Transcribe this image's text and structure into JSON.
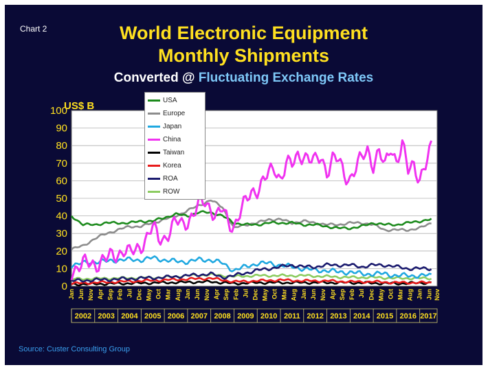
{
  "chart_label": "Chart 2",
  "title_line1": "World Electronic Equipment",
  "title_line2": "Monthly Shipments",
  "subtitle_part1": "Converted @ ",
  "subtitle_part2": "Fluctuating Exchange Rates",
  "source": "Source: Custer Consulting Group",
  "colors": {
    "background": "#0a0a36",
    "title": "#ffe020",
    "subtitle_accent": "#7ec8f8",
    "source": "#3aa0f0"
  },
  "chart_data": {
    "type": "line",
    "ylabel": "US$ B",
    "ylim": [
      0,
      100
    ],
    "yticks": [
      0,
      10,
      20,
      30,
      40,
      50,
      60,
      70,
      80,
      90,
      100
    ],
    "month_ticks": [
      "Jan",
      "Jun",
      "Nov",
      "Apr",
      "Sep",
      "Feb",
      "Jul",
      "Dec",
      "May",
      "Oct",
      "Mar",
      "Aug",
      "Jan",
      "Jun",
      "Nov",
      "Apr",
      "Sep",
      "Feb",
      "Jul",
      "Dec",
      "May",
      "Oct",
      "Mar",
      "Aug",
      "Jan",
      "Jun",
      "Nov",
      "Apr",
      "Sep",
      "Feb",
      "Jul",
      "Dec",
      "May",
      "Oct",
      "Mar",
      "Aug",
      "Jan",
      "Jun",
      "Nov"
    ],
    "years": [
      "2002",
      "2003",
      "2004",
      "2005",
      "2006",
      "2007",
      "2008",
      "2009",
      "2010",
      "2011",
      "2012",
      "2013",
      "2014",
      "2015",
      "2016",
      "2017"
    ],
    "x_start": "2002-01",
    "x_end": "2017-11",
    "grid": true,
    "legend_position": "top-left",
    "series": [
      {
        "name": "USA",
        "color": "#1c8a1c",
        "anchors": [
          [
            0,
            40
          ],
          [
            6,
            35
          ],
          [
            12,
            35
          ],
          [
            18,
            36
          ],
          [
            24,
            36
          ],
          [
            30,
            36
          ],
          [
            36,
            37
          ],
          [
            42,
            37
          ],
          [
            48,
            39
          ],
          [
            54,
            41
          ],
          [
            60,
            40
          ],
          [
            66,
            42
          ],
          [
            72,
            42
          ],
          [
            78,
            40
          ],
          [
            84,
            36
          ],
          [
            90,
            35
          ],
          [
            96,
            35
          ],
          [
            102,
            36
          ],
          [
            108,
            36
          ],
          [
            114,
            36
          ],
          [
            120,
            35
          ],
          [
            126,
            35
          ],
          [
            132,
            34
          ],
          [
            138,
            33
          ],
          [
            144,
            33
          ],
          [
            150,
            34
          ],
          [
            156,
            36
          ],
          [
            162,
            35
          ],
          [
            168,
            35
          ],
          [
            174,
            36
          ],
          [
            180,
            37
          ],
          [
            186,
            38
          ]
        ]
      },
      {
        "name": "Europe",
        "color": "#8c8c8c",
        "anchors": [
          [
            0,
            21
          ],
          [
            6,
            23
          ],
          [
            12,
            27
          ],
          [
            18,
            30
          ],
          [
            24,
            32
          ],
          [
            30,
            34
          ],
          [
            36,
            34
          ],
          [
            42,
            36
          ],
          [
            48,
            38
          ],
          [
            54,
            40
          ],
          [
            60,
            43
          ],
          [
            66,
            46
          ],
          [
            72,
            49
          ],
          [
            78,
            45
          ],
          [
            84,
            33
          ],
          [
            90,
            35
          ],
          [
            96,
            36
          ],
          [
            102,
            38
          ],
          [
            108,
            38
          ],
          [
            114,
            36
          ],
          [
            120,
            37
          ],
          [
            126,
            36
          ],
          [
            132,
            35
          ],
          [
            138,
            35
          ],
          [
            144,
            36
          ],
          [
            150,
            36
          ],
          [
            156,
            35
          ],
          [
            162,
            32
          ],
          [
            168,
            32
          ],
          [
            174,
            32
          ],
          [
            180,
            33
          ],
          [
            186,
            36
          ]
        ]
      },
      {
        "name": "Japan",
        "color": "#1fa8e0",
        "anchors": [
          [
            0,
            12
          ],
          [
            6,
            13
          ],
          [
            12,
            14
          ],
          [
            18,
            14
          ],
          [
            24,
            15
          ],
          [
            30,
            15
          ],
          [
            36,
            15
          ],
          [
            42,
            16
          ],
          [
            48,
            15
          ],
          [
            54,
            14
          ],
          [
            60,
            14
          ],
          [
            66,
            15
          ],
          [
            72,
            15
          ],
          [
            78,
            13
          ],
          [
            84,
            9
          ],
          [
            90,
            11
          ],
          [
            96,
            13
          ],
          [
            102,
            13
          ],
          [
            108,
            12
          ],
          [
            114,
            11
          ],
          [
            120,
            10
          ],
          [
            126,
            9
          ],
          [
            132,
            9
          ],
          [
            138,
            8
          ],
          [
            144,
            8
          ],
          [
            150,
            7
          ],
          [
            156,
            7
          ],
          [
            162,
            7
          ],
          [
            168,
            6
          ],
          [
            174,
            6
          ],
          [
            180,
            6
          ],
          [
            186,
            6
          ]
        ]
      },
      {
        "name": "China",
        "color": "#f032f0",
        "anchors": [
          [
            0,
            9
          ],
          [
            3,
            11
          ],
          [
            6,
            12
          ],
          [
            9,
            13
          ],
          [
            12,
            13
          ],
          [
            15,
            14
          ],
          [
            18,
            15
          ],
          [
            21,
            17
          ],
          [
            24,
            19
          ],
          [
            27,
            21
          ],
          [
            30,
            18
          ],
          [
            33,
            20
          ],
          [
            36,
            24
          ],
          [
            39,
            28
          ],
          [
            42,
            33
          ],
          [
            45,
            27
          ],
          [
            48,
            28
          ],
          [
            51,
            32
          ],
          [
            54,
            36
          ],
          [
            57,
            35
          ],
          [
            60,
            38
          ],
          [
            63,
            41
          ],
          [
            66,
            46
          ],
          [
            69,
            48
          ],
          [
            72,
            45
          ],
          [
            75,
            40
          ],
          [
            78,
            43
          ],
          [
            81,
            36
          ],
          [
            84,
            35
          ],
          [
            87,
            42
          ],
          [
            90,
            47
          ],
          [
            93,
            53
          ],
          [
            96,
            56
          ],
          [
            99,
            60
          ],
          [
            102,
            63
          ],
          [
            105,
            67
          ],
          [
            108,
            62
          ],
          [
            111,
            70
          ],
          [
            114,
            68
          ],
          [
            117,
            74
          ],
          [
            120,
            76
          ],
          [
            123,
            72
          ],
          [
            126,
            70
          ],
          [
            129,
            74
          ],
          [
            132,
            66
          ],
          [
            135,
            72
          ],
          [
            138,
            71
          ],
          [
            141,
            64
          ],
          [
            144,
            62
          ],
          [
            147,
            67
          ],
          [
            150,
            72
          ],
          [
            153,
            78
          ],
          [
            156,
            70
          ],
          [
            159,
            76
          ],
          [
            162,
            67
          ],
          [
            165,
            80
          ],
          [
            168,
            72
          ],
          [
            171,
            80
          ],
          [
            174,
            65
          ],
          [
            177,
            70
          ],
          [
            180,
            62
          ],
          [
            183,
            68
          ],
          [
            186,
            78
          ]
        ],
        "wave": 6
      },
      {
        "name": "Taiwan",
        "color": "#000000",
        "anchors": [
          [
            0,
            1
          ],
          [
            24,
            1.5
          ],
          [
            48,
            2
          ],
          [
            72,
            2.5
          ],
          [
            84,
            1.5
          ],
          [
            96,
            2
          ],
          [
            120,
            2
          ],
          [
            144,
            2
          ],
          [
            168,
            1.5
          ],
          [
            186,
            2
          ]
        ]
      },
      {
        "name": "Korea",
        "color": "#e81a1a",
        "anchors": [
          [
            0,
            1.5
          ],
          [
            12,
            2
          ],
          [
            24,
            2.5
          ],
          [
            36,
            3
          ],
          [
            48,
            3.5
          ],
          [
            60,
            4
          ],
          [
            72,
            4.5
          ],
          [
            84,
            2.5
          ],
          [
            96,
            3
          ],
          [
            108,
            3.5
          ],
          [
            120,
            3
          ],
          [
            132,
            3
          ],
          [
            144,
            2.5
          ],
          [
            156,
            2.5
          ],
          [
            168,
            2
          ],
          [
            186,
            2
          ]
        ]
      },
      {
        "name": "ROA",
        "color": "#1a1a6e",
        "anchors": [
          [
            0,
            3
          ],
          [
            12,
            3.5
          ],
          [
            24,
            4
          ],
          [
            36,
            4.5
          ],
          [
            48,
            5
          ],
          [
            60,
            6
          ],
          [
            72,
            7
          ],
          [
            78,
            5
          ],
          [
            84,
            6
          ],
          [
            96,
            9
          ],
          [
            108,
            11
          ],
          [
            114,
            12
          ],
          [
            120,
            11
          ],
          [
            126,
            11
          ],
          [
            132,
            12
          ],
          [
            138,
            12
          ],
          [
            144,
            12
          ],
          [
            150,
            11
          ],
          [
            156,
            12
          ],
          [
            162,
            12
          ],
          [
            168,
            11
          ],
          [
            174,
            10
          ],
          [
            180,
            10
          ],
          [
            186,
            10
          ]
        ]
      },
      {
        "name": "ROW",
        "color": "#8ccc60",
        "anchors": [
          [
            0,
            4
          ],
          [
            24,
            4.5
          ],
          [
            48,
            5
          ],
          [
            60,
            6
          ],
          [
            72,
            6.5
          ],
          [
            84,
            5.5
          ],
          [
            96,
            6
          ],
          [
            108,
            6
          ],
          [
            120,
            6
          ],
          [
            132,
            5.5
          ],
          [
            144,
            5
          ],
          [
            156,
            5
          ],
          [
            168,
            4.5
          ],
          [
            186,
            4.5
          ]
        ]
      }
    ]
  }
}
